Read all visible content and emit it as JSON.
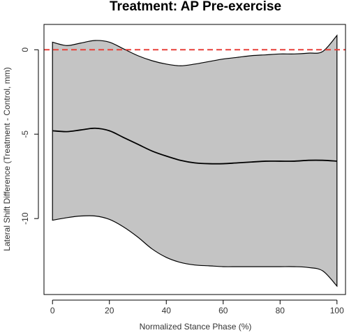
{
  "chart_data": {
    "type": "area",
    "title": "Treatment: AP Pre-exercise",
    "xlabel": "Normalized Stance Phase (%)",
    "ylabel": "Lateral Shift Difference (Treatment - Control, mm)",
    "xlim": [
      -3,
      103
    ],
    "ylim": [
      -14.5,
      1.5
    ],
    "x_ticks": [
      0,
      20,
      40,
      60,
      80,
      100
    ],
    "y_ticks": [
      0,
      -5,
      -10
    ],
    "reference_line": {
      "y": 0,
      "color": "#e8413a",
      "style": "dashed"
    },
    "band_color": "#c4c4c4",
    "x": [
      0,
      5,
      10,
      15,
      20,
      25,
      30,
      35,
      40,
      45,
      50,
      55,
      60,
      65,
      70,
      75,
      80,
      85,
      90,
      95,
      100
    ],
    "series": [
      {
        "role": "mean",
        "values": [
          -4.8,
          -4.85,
          -4.75,
          -4.65,
          -4.8,
          -5.2,
          -5.6,
          -6.0,
          -6.3,
          -6.55,
          -6.7,
          -6.75,
          -6.75,
          -6.7,
          -6.65,
          -6.6,
          -6.6,
          -6.6,
          -6.55,
          -6.55,
          -6.6
        ]
      },
      {
        "role": "upper",
        "values": [
          0.45,
          0.25,
          0.4,
          0.55,
          0.45,
          0.05,
          -0.35,
          -0.65,
          -0.85,
          -0.95,
          -0.85,
          -0.7,
          -0.55,
          -0.45,
          -0.35,
          -0.3,
          -0.25,
          -0.25,
          -0.2,
          -0.1,
          0.85
        ]
      },
      {
        "role": "lower",
        "values": [
          -10.1,
          -9.95,
          -9.85,
          -9.85,
          -10.05,
          -10.5,
          -11.1,
          -11.8,
          -12.3,
          -12.6,
          -12.75,
          -12.8,
          -12.85,
          -12.85,
          -12.85,
          -12.85,
          -12.85,
          -12.85,
          -12.9,
          -13.1,
          -14.0
        ]
      }
    ]
  }
}
